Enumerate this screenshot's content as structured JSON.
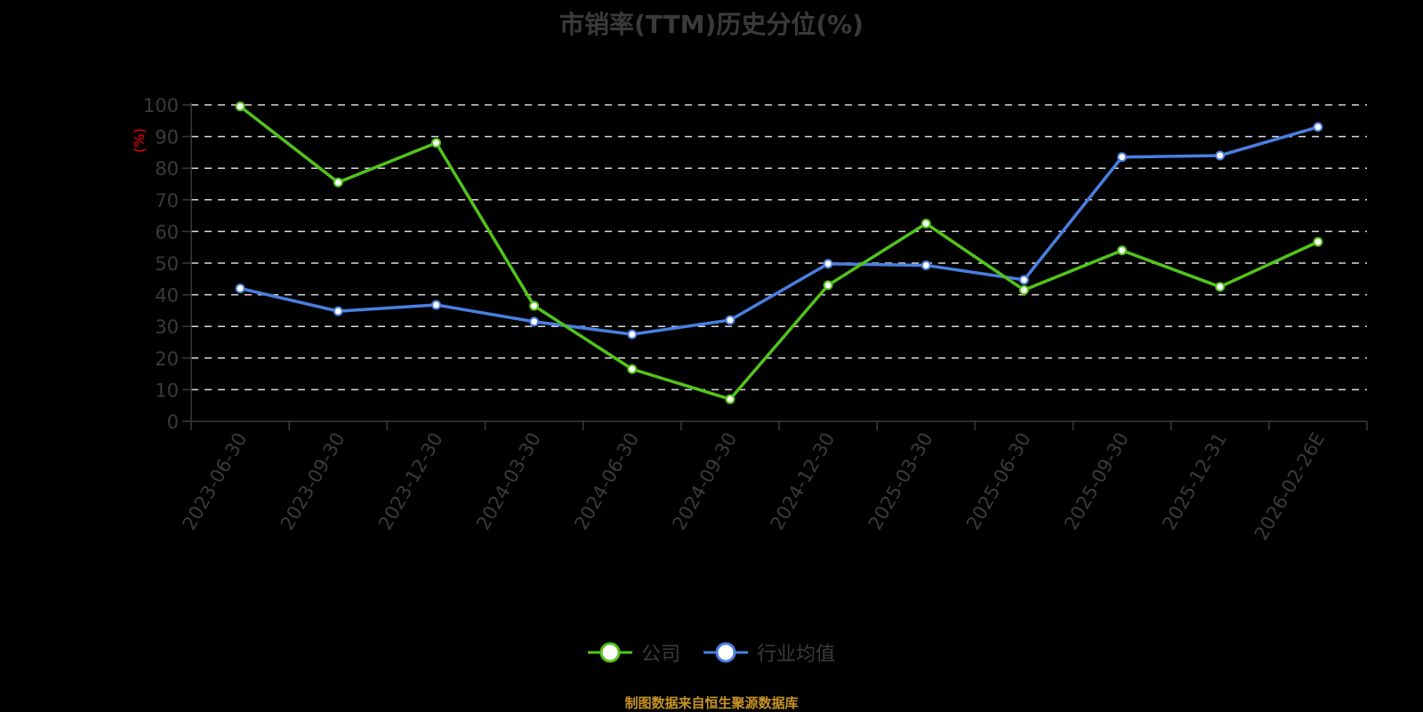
{
  "title": "市销率(TTM)历史分位(%)",
  "source": "制图数据来自恒生聚源数据库",
  "colors": {
    "company": "#52c41a",
    "industry": "#4a7fe0",
    "ylabel": "#ff0000",
    "text": "#3a3a3a",
    "source": "#c89422"
  },
  "legend": [
    {
      "name": "公司",
      "icon": "circle-line-marker-icon",
      "color": "#52c41a"
    },
    {
      "name": "行业均值",
      "icon": "circle-line-marker-icon",
      "color": "#4a7fe0"
    }
  ],
  "chart_data": {
    "type": "line",
    "title": "市销率(TTM)历史分位(%)",
    "xlabel": "",
    "ylabel": "(%)",
    "ylim": [
      0,
      100
    ],
    "yticks": [
      0,
      10,
      20,
      30,
      40,
      50,
      60,
      70,
      80,
      90,
      100
    ],
    "grid": true,
    "legend_position": "bottom",
    "categories": [
      "2023-06-30",
      "2023-09-30",
      "2023-12-30",
      "2024-03-30",
      "2024-06-30",
      "2024-09-30",
      "2024-12-30",
      "2025-03-30",
      "2025-06-30",
      "2025-09-30",
      "2025-12-31",
      "2026-02-26E"
    ],
    "series": [
      {
        "name": "公司",
        "values": [
          99.5,
          75.5,
          88,
          36.5,
          16.5,
          7,
          43,
          62.5,
          41.5,
          54,
          42.5,
          56.7
        ]
      },
      {
        "name": "行业均值",
        "values": [
          42,
          34.8,
          36.8,
          31.5,
          27.5,
          32,
          49.8,
          49.3,
          44.7,
          83.5,
          84,
          93
        ]
      }
    ]
  }
}
